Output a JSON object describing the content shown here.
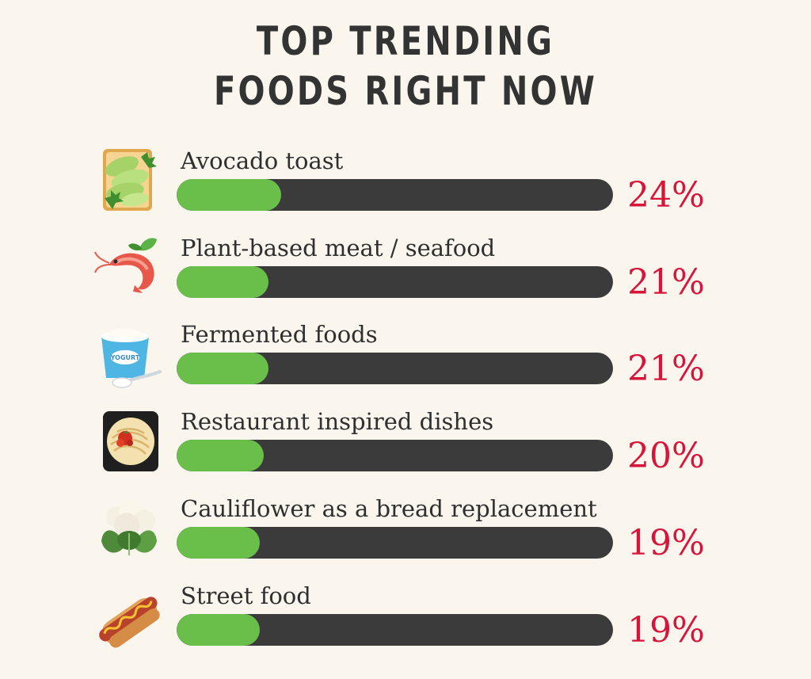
{
  "title_line1": "TOP TRENDING",
  "title_line2": "FOODS RIGHT NOW",
  "yogurt_lid_text": "YOGURT",
  "colors": {
    "fill": "#6abf4b",
    "track": "#3b3b3b",
    "value": "#d7143a",
    "background": "#faf6ee"
  },
  "chart_data": {
    "type": "bar",
    "orientation": "horizontal",
    "title": "TOP TRENDING FOODS RIGHT NOW",
    "xlim": [
      0,
      100
    ],
    "categories": [
      "Avocado toast",
      "Plant-based meat / seafood",
      "Fermented foods",
      "Restaurant inspired dishes",
      "Cauliflower as a bread replacement",
      "Street food"
    ],
    "values": [
      24,
      21,
      21,
      20,
      19,
      19
    ],
    "value_labels": [
      "24%",
      "21%",
      "21%",
      "20%",
      "19%",
      "19%"
    ],
    "icons": [
      "avocado-toast-icon",
      "shrimp-icon",
      "yogurt-icon",
      "spaghetti-icon",
      "cauliflower-icon",
      "hot-dog-icon"
    ]
  }
}
